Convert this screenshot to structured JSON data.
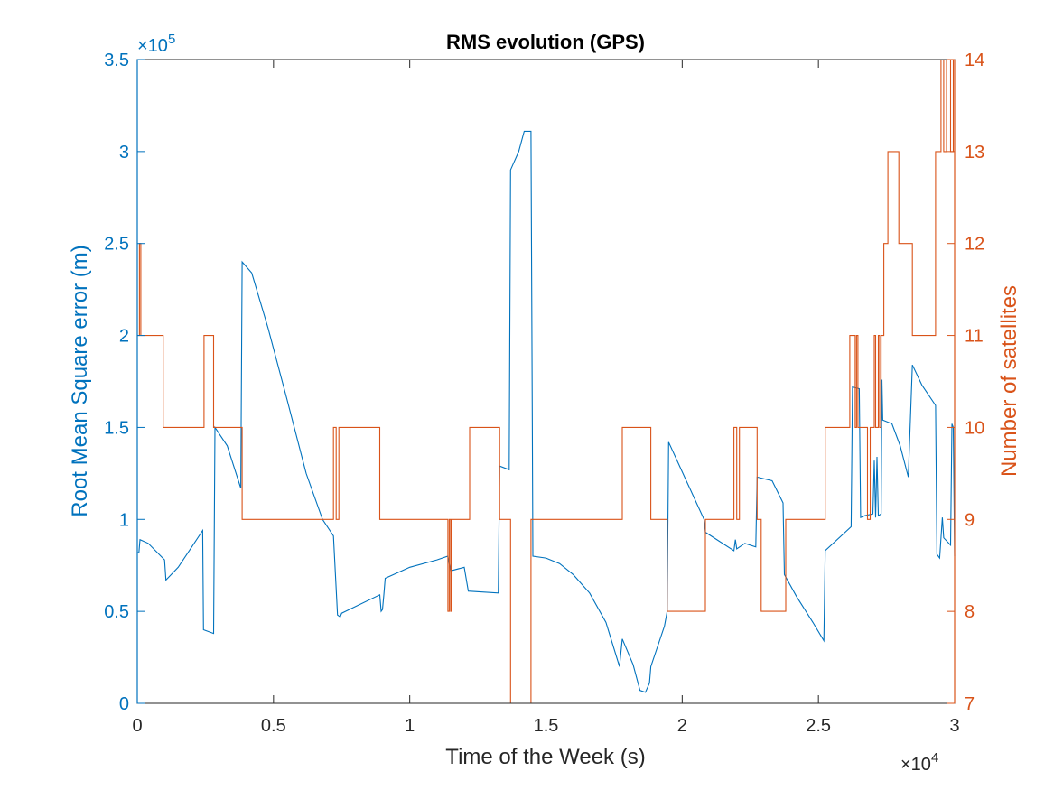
{
  "chart_data": {
    "type": "line",
    "title": "RMS evolution (GPS)",
    "xlabel": "Time of the Week (s)",
    "ylabel_left": "Root Mean Square error (m)",
    "ylabel_right": "Number of satellites",
    "x_exponent_label": "×10",
    "x_exponent_power": "4",
    "y_exponent_label": "×10",
    "y_exponent_power": "5",
    "xlim": [
      0,
      30000
    ],
    "ylim_left": [
      0,
      350000
    ],
    "ylim_right": [
      7,
      14
    ],
    "grid": false,
    "x_ticks": [
      0,
      5000,
      10000,
      15000,
      20000,
      25000,
      30000
    ],
    "x_tick_labels": [
      "0",
      "0.5",
      "1",
      "1.5",
      "2",
      "2.5",
      "3"
    ],
    "y_left_ticks": [
      0,
      50000,
      100000,
      150000,
      200000,
      250000,
      300000,
      350000
    ],
    "y_left_tick_labels": [
      "0",
      "0.5",
      "1",
      "1.5",
      "2",
      "2.5",
      "3",
      "3.5"
    ],
    "y_right_ticks": [
      7,
      8,
      9,
      10,
      11,
      12,
      13,
      14
    ],
    "y_right_tick_labels": [
      "7",
      "8",
      "9",
      "10",
      "11",
      "12",
      "13",
      "14"
    ],
    "colors": {
      "left": "#0072BD",
      "right": "#D95319",
      "axis": "#262626"
    },
    "series": [
      {
        "axis": "left",
        "points": [
          [
            0,
            82000
          ],
          [
            60,
            82000
          ],
          [
            100,
            89000
          ],
          [
            400,
            87000
          ],
          [
            1000,
            78000
          ],
          [
            1050,
            67000
          ],
          [
            1500,
            74000
          ],
          [
            2000,
            85000
          ],
          [
            2400,
            94000
          ],
          [
            2430,
            40000
          ],
          [
            2800,
            38000
          ],
          [
            2850,
            150000
          ],
          [
            3300,
            140000
          ],
          [
            3800,
            117000
          ],
          [
            3850,
            240000
          ],
          [
            4200,
            234000
          ],
          [
            4800,
            204000
          ],
          [
            5500,
            165000
          ],
          [
            6200,
            125000
          ],
          [
            6800,
            100000
          ],
          [
            7200,
            91000
          ],
          [
            7350,
            48000
          ],
          [
            7450,
            47000
          ],
          [
            7500,
            49000
          ],
          [
            8900,
            59000
          ],
          [
            8950,
            50000
          ],
          [
            9000,
            51000
          ],
          [
            9050,
            59000
          ],
          [
            9100,
            68000
          ],
          [
            10000,
            74000
          ],
          [
            11000,
            78000
          ],
          [
            11400,
            80000
          ],
          [
            11500,
            72000
          ],
          [
            12000,
            74000
          ],
          [
            12150,
            61000
          ],
          [
            13250,
            60000
          ],
          [
            13300,
            129000
          ],
          [
            13650,
            127000
          ],
          [
            13700,
            290000
          ],
          [
            14000,
            300000
          ],
          [
            14200,
            311000
          ],
          [
            14450,
            311000
          ],
          [
            14500,
            150000
          ],
          [
            14520,
            80000
          ],
          [
            15000,
            79000
          ],
          [
            15500,
            76000
          ],
          [
            16000,
            70000
          ],
          [
            16600,
            60000
          ],
          [
            17200,
            44000
          ],
          [
            17700,
            20000
          ],
          [
            17800,
            35000
          ],
          [
            18200,
            21000
          ],
          [
            18450,
            7000
          ],
          [
            18650,
            6000
          ],
          [
            18800,
            11000
          ],
          [
            18850,
            20000
          ],
          [
            19350,
            42000
          ],
          [
            19450,
            50000
          ],
          [
            19500,
            142000
          ],
          [
            20800,
            100000
          ],
          [
            20850,
            93000
          ],
          [
            21900,
            83000
          ],
          [
            21950,
            89000
          ],
          [
            22000,
            84000
          ],
          [
            22300,
            87000
          ],
          [
            22700,
            85000
          ],
          [
            22750,
            123000
          ],
          [
            23300,
            121000
          ],
          [
            23700,
            109000
          ],
          [
            23750,
            70000
          ],
          [
            24200,
            58000
          ],
          [
            24800,
            44000
          ],
          [
            25200,
            34000
          ],
          [
            25250,
            83000
          ],
          [
            26200,
            96000
          ],
          [
            26250,
            172000
          ],
          [
            26500,
            171000
          ],
          [
            26550,
            101000
          ],
          [
            26700,
            102000
          ],
          [
            27000,
            103000
          ],
          [
            27050,
            132000
          ],
          [
            27100,
            101000
          ],
          [
            27150,
            134000
          ],
          [
            27200,
            102000
          ],
          [
            27300,
            103000
          ],
          [
            27330,
            176000
          ],
          [
            27360,
            154000
          ],
          [
            27700,
            152000
          ],
          [
            28000,
            140000
          ],
          [
            28300,
            123000
          ],
          [
            28450,
            184000
          ],
          [
            28800,
            173000
          ],
          [
            29300,
            162000
          ],
          [
            29350,
            81000
          ],
          [
            29450,
            79000
          ],
          [
            29550,
            101000
          ],
          [
            29600,
            90000
          ],
          [
            29850,
            86000
          ],
          [
            29900,
            152000
          ],
          [
            29950,
            150000
          ],
          [
            30000,
            80000
          ]
        ]
      },
      {
        "axis": "right",
        "points": [
          [
            0,
            11
          ],
          [
            80,
            11
          ],
          [
            80,
            12
          ],
          [
            130,
            12
          ],
          [
            130,
            11
          ],
          [
            950,
            11
          ],
          [
            950,
            10
          ],
          [
            2450,
            10
          ],
          [
            2450,
            11
          ],
          [
            2800,
            11
          ],
          [
            2800,
            10
          ],
          [
            3850,
            10
          ],
          [
            3850,
            9
          ],
          [
            7200,
            9
          ],
          [
            7200,
            10
          ],
          [
            7300,
            10
          ],
          [
            7300,
            9
          ],
          [
            7400,
            9
          ],
          [
            7400,
            10
          ],
          [
            8900,
            10
          ],
          [
            8900,
            9
          ],
          [
            11400,
            9
          ],
          [
            11400,
            8
          ],
          [
            11450,
            8
          ],
          [
            11450,
            9
          ],
          [
            11500,
            9
          ],
          [
            11500,
            8
          ],
          [
            11520,
            8
          ],
          [
            11520,
            9
          ],
          [
            12200,
            9
          ],
          [
            12200,
            10
          ],
          [
            13300,
            10
          ],
          [
            13300,
            9
          ],
          [
            13700,
            9
          ],
          [
            13700,
            7
          ],
          [
            14450,
            7
          ],
          [
            14450,
            9
          ],
          [
            17800,
            9
          ],
          [
            17800,
            10
          ],
          [
            18850,
            10
          ],
          [
            18850,
            9
          ],
          [
            19450,
            9
          ],
          [
            19450,
            8
          ],
          [
            20850,
            8
          ],
          [
            20850,
            9
          ],
          [
            21900,
            9
          ],
          [
            21900,
            10
          ],
          [
            22000,
            10
          ],
          [
            22000,
            9
          ],
          [
            22100,
            9
          ],
          [
            22100,
            10
          ],
          [
            22750,
            10
          ],
          [
            22750,
            9
          ],
          [
            22900,
            9
          ],
          [
            22900,
            8
          ],
          [
            23800,
            8
          ],
          [
            23800,
            9
          ],
          [
            25250,
            9
          ],
          [
            25250,
            10
          ],
          [
            26150,
            10
          ],
          [
            26150,
            11
          ],
          [
            26350,
            11
          ],
          [
            26350,
            10
          ],
          [
            26400,
            10
          ],
          [
            26400,
            11
          ],
          [
            26450,
            11
          ],
          [
            26450,
            10
          ],
          [
            26800,
            10
          ],
          [
            26800,
            9
          ],
          [
            26900,
            9
          ],
          [
            26900,
            10
          ],
          [
            27050,
            10
          ],
          [
            27050,
            11
          ],
          [
            27100,
            11
          ],
          [
            27100,
            10
          ],
          [
            27200,
            10
          ],
          [
            27200,
            11
          ],
          [
            27250,
            11
          ],
          [
            27250,
            10
          ],
          [
            27300,
            10
          ],
          [
            27300,
            11
          ],
          [
            27400,
            11
          ],
          [
            27400,
            12
          ],
          [
            27550,
            12
          ],
          [
            27550,
            13
          ],
          [
            27950,
            13
          ],
          [
            27950,
            12
          ],
          [
            28450,
            12
          ],
          [
            28450,
            11
          ],
          [
            29300,
            11
          ],
          [
            29300,
            13
          ],
          [
            29500,
            13
          ],
          [
            29500,
            14
          ],
          [
            29600,
            14
          ],
          [
            29600,
            13
          ],
          [
            29700,
            13
          ],
          [
            29700,
            14
          ],
          [
            29850,
            14
          ],
          [
            29850,
            13
          ],
          [
            29950,
            13
          ],
          [
            29950,
            14
          ],
          [
            30000,
            14
          ]
        ]
      }
    ]
  }
}
